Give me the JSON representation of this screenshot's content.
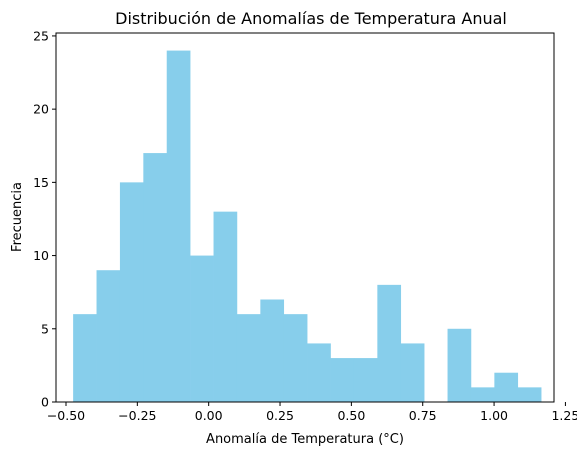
{
  "chart_data": {
    "type": "bar",
    "title": "Distribución de Anomalías de Temperatura Anual",
    "xlabel": "Anomalía de Temperatura (°C)",
    "ylabel": "Frecuencia",
    "xlim": [
      -0.535,
      1.21
    ],
    "ylim": [
      0,
      25.2
    ],
    "grid": false,
    "bar_color": "#87ceeb",
    "bins": [
      {
        "x0": -0.475,
        "x1": -0.393,
        "count": 6
      },
      {
        "x0": -0.393,
        "x1": -0.311,
        "count": 9
      },
      {
        "x0": -0.311,
        "x1": -0.229,
        "count": 15
      },
      {
        "x0": -0.229,
        "x1": -0.147,
        "count": 17
      },
      {
        "x0": -0.147,
        "x1": -0.065,
        "count": 24
      },
      {
        "x0": -0.065,
        "x1": 0.017,
        "count": 10
      },
      {
        "x0": 0.017,
        "x1": 0.099,
        "count": 13
      },
      {
        "x0": 0.099,
        "x1": 0.181,
        "count": 6
      },
      {
        "x0": 0.181,
        "x1": 0.263,
        "count": 7
      },
      {
        "x0": 0.263,
        "x1": 0.345,
        "count": 6
      },
      {
        "x0": 0.345,
        "x1": 0.427,
        "count": 4
      },
      {
        "x0": 0.427,
        "x1": 0.509,
        "count": 3
      },
      {
        "x0": 0.509,
        "x1": 0.591,
        "count": 3
      },
      {
        "x0": 0.591,
        "x1": 0.673,
        "count": 8
      },
      {
        "x0": 0.673,
        "x1": 0.755,
        "count": 4
      },
      {
        "x0": 0.755,
        "x1": 0.837,
        "count": 0
      },
      {
        "x0": 0.837,
        "x1": 0.919,
        "count": 5
      },
      {
        "x0": 0.919,
        "x1": 1.001,
        "count": 1
      },
      {
        "x0": 1.001,
        "x1": 1.083,
        "count": 2
      },
      {
        "x0": 1.083,
        "x1": 1.165,
        "count": 1
      }
    ],
    "x_ticks": [
      {
        "value": -0.5,
        "label": "−0.50"
      },
      {
        "value": -0.25,
        "label": "−0.25"
      },
      {
        "value": 0.0,
        "label": "0.00"
      },
      {
        "value": 0.25,
        "label": "0.25"
      },
      {
        "value": 0.5,
        "label": "0.50"
      },
      {
        "value": 0.75,
        "label": "0.75"
      },
      {
        "value": 1.0,
        "label": "1.00"
      },
      {
        "value": 1.25,
        "label": "1.25"
      }
    ],
    "y_ticks": [
      {
        "value": 0,
        "label": "0"
      },
      {
        "value": 5,
        "label": "5"
      },
      {
        "value": 10,
        "label": "10"
      },
      {
        "value": 15,
        "label": "15"
      },
      {
        "value": 20,
        "label": "20"
      },
      {
        "value": 25,
        "label": "25"
      }
    ]
  }
}
